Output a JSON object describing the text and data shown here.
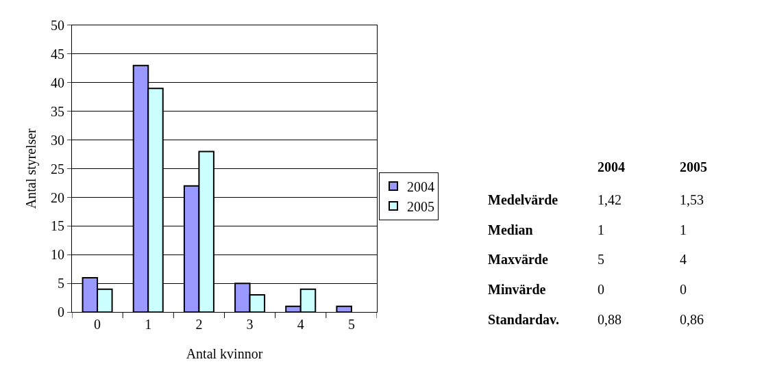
{
  "chart_data": [
    {
      "type": "bar",
      "categories": [
        "0",
        "1",
        "2",
        "3",
        "4",
        "5"
      ],
      "xlabel": "Antal kvinnor",
      "ylabel": "Antal styrelser",
      "ylim": [
        0,
        50
      ],
      "yticks": [
        0,
        5,
        10,
        15,
        20,
        25,
        30,
        35,
        40,
        45,
        50
      ],
      "grid": "y",
      "legend": "right",
      "series": [
        {
          "name": "2004",
          "color": "#9999ff",
          "values": [
            6,
            43,
            22,
            5,
            1,
            1
          ]
        },
        {
          "name": "2005",
          "color": "#ccffff",
          "values": [
            4,
            39,
            28,
            3,
            4,
            0
          ]
        }
      ]
    },
    {
      "type": "other",
      "annotations": [
        "2004",
        "2005",
        "Medelvärde",
        "1,42",
        "1,53",
        "Median",
        "1",
        "1",
        "Maxvärde",
        "5",
        "4",
        "Minvärde",
        "0",
        "0",
        "Standardav.",
        "0,88",
        "0,86"
      ]
    }
  ]
}
